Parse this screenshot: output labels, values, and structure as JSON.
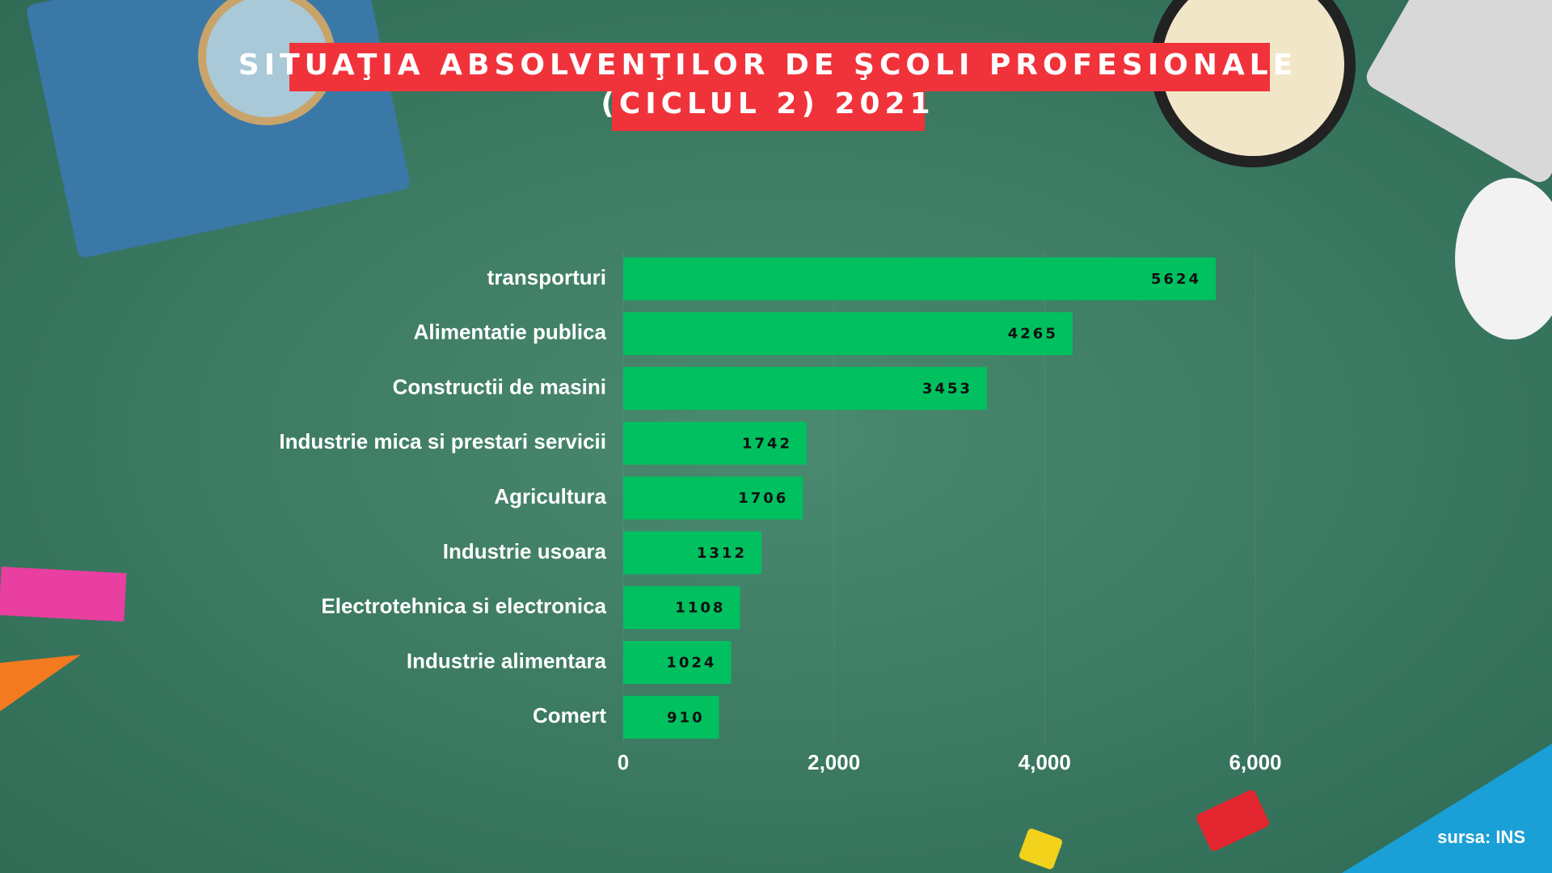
{
  "chart_data": {
    "type": "hbar",
    "title": [
      "SITUAŢIA ABSOLVENŢILOR DE ŞCOLI PROFESIONALE",
      "(CICLUL 2) 2021"
    ],
    "categories": [
      "transporturi",
      "Alimentatie publica",
      "Constructii de masini",
      "Industrie mica si prestari servicii",
      "Agricultura",
      "Industrie usoara",
      "Electrotehnica si electronica",
      "Industrie alimentara",
      "Comert"
    ],
    "values": [
      5624,
      4265,
      3453,
      1742,
      1706,
      1312,
      1108,
      1024,
      910
    ],
    "color": "#00c060",
    "xlim": [
      0,
      6000
    ],
    "xticks": [
      0,
      {
        "value": 2000,
        "label": "2,000"
      },
      {
        "value": 4000,
        "label": "4,000"
      },
      {
        "value": 6000,
        "label": "6,000"
      }
    ],
    "grid": true,
    "source": "sursa: INS"
  }
}
